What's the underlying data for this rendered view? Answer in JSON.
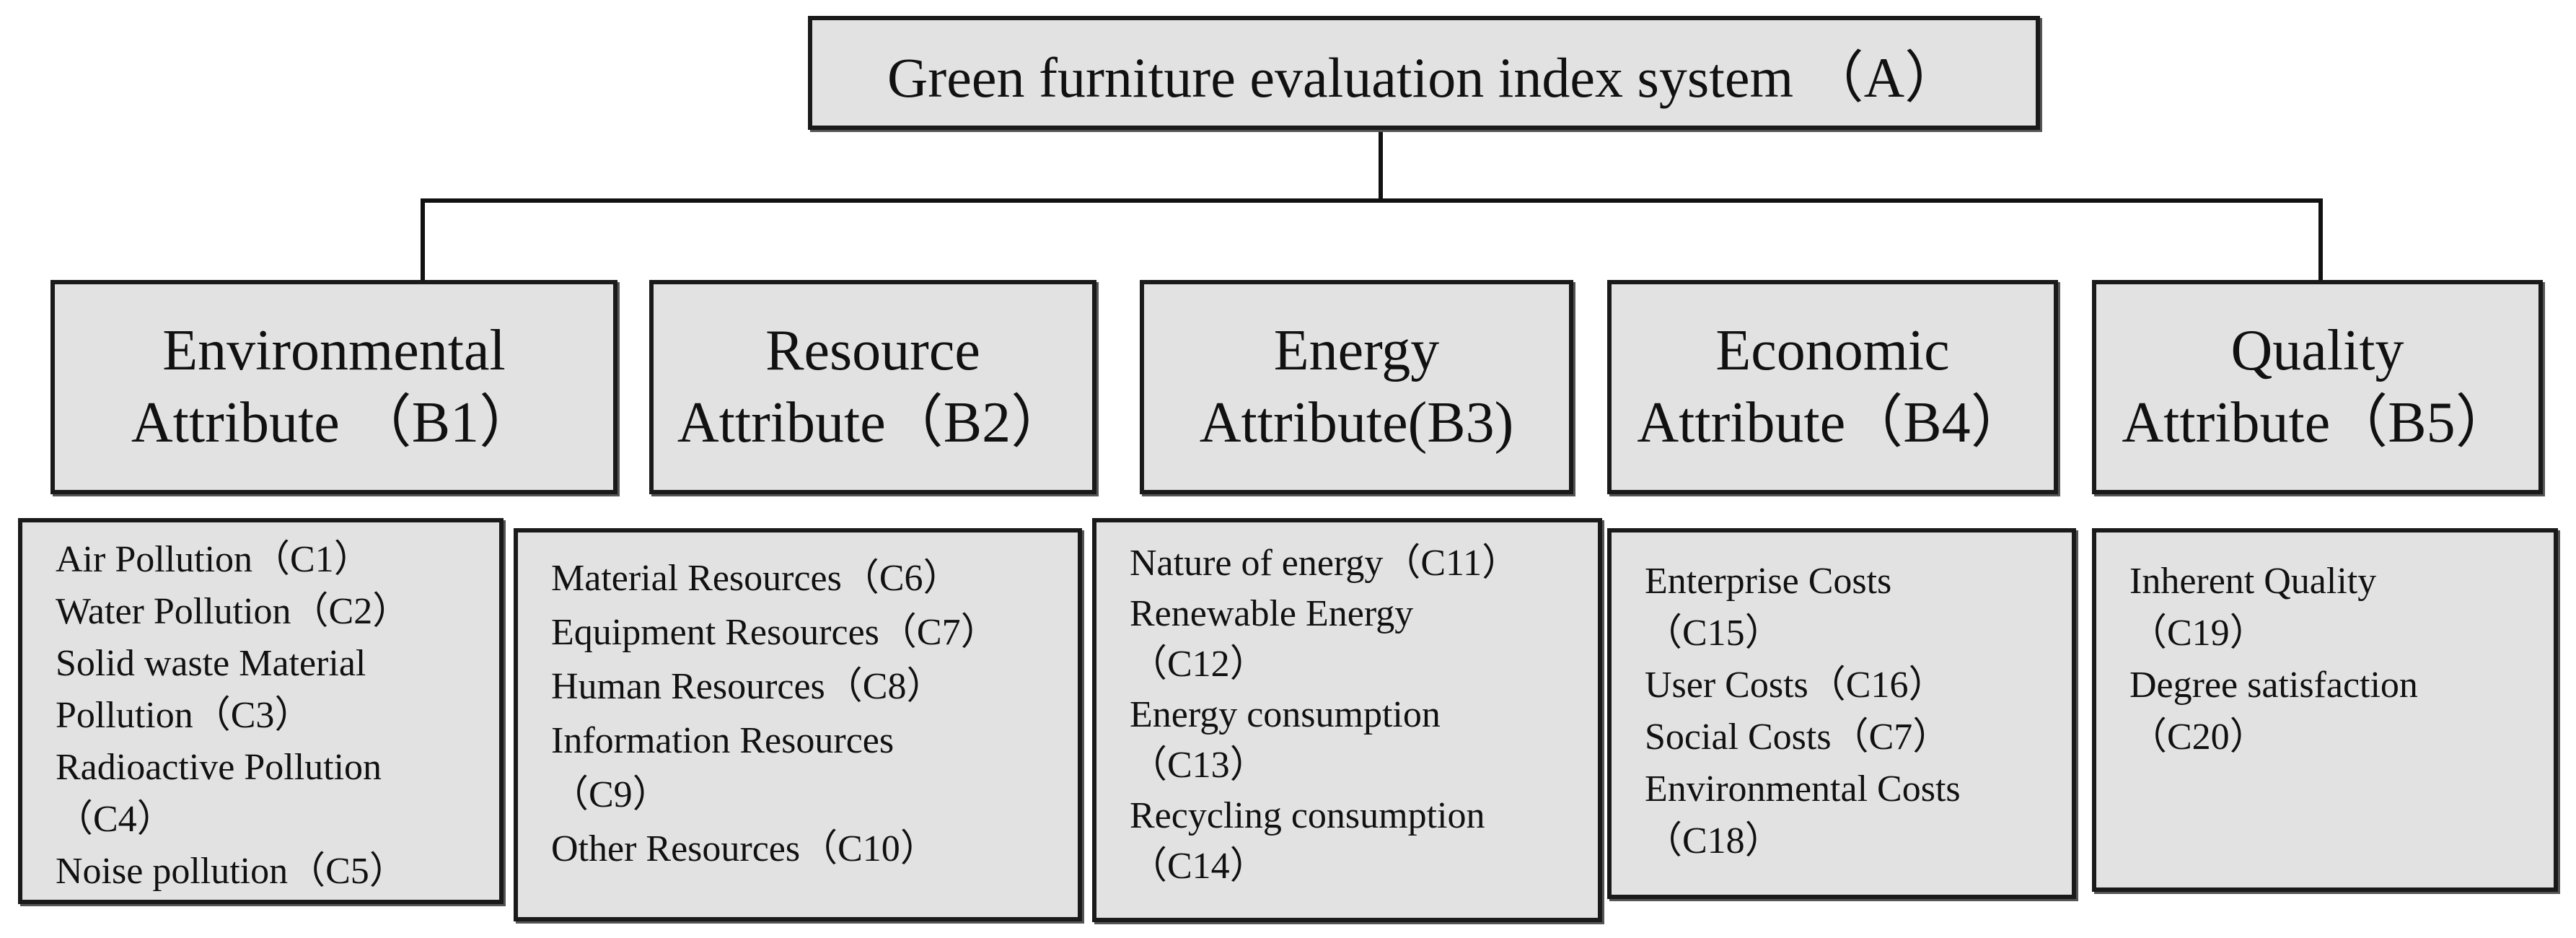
{
  "root": {
    "label": "Green furniture evaluation index system （A）"
  },
  "attributes": [
    {
      "line1": "Environmental",
      "line2": "Attribute （B1）",
      "indicators": [
        "Air Pollution（C1）",
        "Water Pollution（C2）",
        "Solid waste Material",
        "Pollution（C3）",
        "Radioactive Pollution",
        "（C4）",
        "Noise pollution（C5）"
      ]
    },
    {
      "line1": "Resource",
      "line2": "Attribute（B2）",
      "indicators": [
        "Material Resources（C6）",
        "Equipment Resources（C7）",
        "Human Resources（C8）",
        "Information Resources",
        "（C9）",
        "Other Resources（C10）"
      ]
    },
    {
      "line1": "Energy",
      "line2": "Attribute(B3)",
      "indicators": [
        "Nature of energy（C11）",
        "Renewable Energy",
        "（C12）",
        "Energy consumption",
        "（C13）",
        "Recycling consumption",
        "（C14）"
      ]
    },
    {
      "line1": "Economic",
      "line2": "Attribute（B4）",
      "indicators": [
        "Enterprise Costs",
        "（C15）",
        "User Costs（C16）",
        "Social Costs（C7）",
        "Environmental Costs",
        "（C18）"
      ]
    },
    {
      "line1": "Quality",
      "line2": "Attribute（B5）",
      "indicators": [
        "Inherent Quality",
        "（C19）",
        "Degree satisfaction",
        "（C20）"
      ]
    }
  ]
}
